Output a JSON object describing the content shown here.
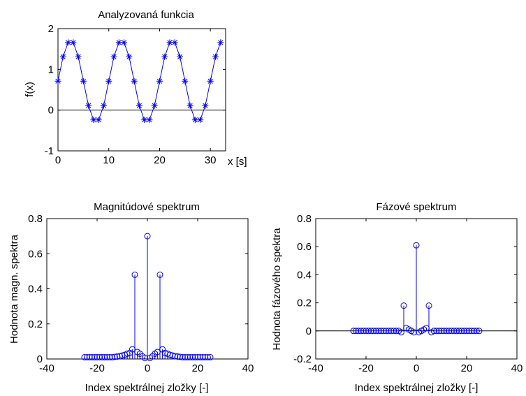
{
  "colors": {
    "series": "#0000ff",
    "axes": "#000000",
    "background": "#ffffff"
  },
  "chart_data": [
    {
      "type": "line",
      "marker": "asterisk",
      "title": "Analyzovaná funkcia",
      "xlabel": "x [s]",
      "ylabel": "f(x)",
      "xlim": [
        0,
        33
      ],
      "ylim": [
        -1,
        2
      ],
      "xticks": [
        0,
        10,
        20,
        30
      ],
      "yticks": [
        -1,
        0,
        1,
        2
      ],
      "zero_line": true,
      "x": [
        0,
        1,
        2,
        3,
        4,
        5,
        6,
        7,
        8,
        9,
        10,
        11,
        12,
        13,
        14,
        15,
        16,
        17,
        18,
        19,
        20,
        21,
        22,
        23,
        24,
        25,
        26,
        27,
        28,
        29,
        30,
        31,
        32
      ],
      "values": [
        0.71,
        1.31,
        1.66,
        1.66,
        1.31,
        0.71,
        0.11,
        -0.24,
        -0.24,
        0.11,
        0.71,
        1.31,
        1.66,
        1.66,
        1.31,
        0.71,
        0.11,
        -0.24,
        -0.24,
        0.11,
        0.71,
        1.31,
        1.66,
        1.66,
        1.31,
        0.71,
        0.11,
        -0.24,
        -0.24,
        0.11,
        0.71,
        1.31,
        1.66
      ]
    },
    {
      "type": "stem",
      "marker": "circle",
      "title": "Magnitúdové spektrum",
      "xlabel": "Index spektrálnej zložky [-]",
      "ylabel": "Hodnota magn. spektra",
      "xlim": [
        -40,
        40
      ],
      "ylim": [
        0,
        0.8
      ],
      "xticks": [
        -40,
        -20,
        0,
        20,
        40
      ],
      "xtick_labels": [
        "-40",
        "-20",
        "0",
        "20",
        "40"
      ],
      "yticks": [
        0,
        0.2,
        0.4,
        0.6,
        0.8
      ],
      "ytick_labels": [
        "0",
        "0.2",
        "0.4",
        "0.6",
        "0.8"
      ],
      "x": [
        -25,
        -24,
        -23,
        -22,
        -21,
        -20,
        -19,
        -18,
        -17,
        -16,
        -15,
        -14,
        -13,
        -12,
        -11,
        -10,
        -9,
        -8,
        -7,
        -6,
        -5,
        -4,
        -3,
        -2,
        -1,
        0,
        1,
        2,
        3,
        4,
        5,
        6,
        7,
        8,
        9,
        10,
        11,
        12,
        13,
        14,
        15,
        16,
        17,
        18,
        19,
        20,
        21,
        22,
        23,
        24,
        25
      ],
      "values": [
        0.01,
        0.01,
        0.01,
        0.01,
        0.01,
        0.01,
        0.01,
        0.01,
        0.01,
        0.01,
        0.01,
        0.01,
        0.012,
        0.014,
        0.016,
        0.02,
        0.024,
        0.03,
        0.035,
        0.055,
        0.48,
        0.04,
        0.03,
        0.015,
        0.005,
        0.7,
        0.005,
        0.015,
        0.03,
        0.04,
        0.48,
        0.055,
        0.035,
        0.03,
        0.024,
        0.02,
        0.016,
        0.014,
        0.012,
        0.01,
        0.01,
        0.01,
        0.01,
        0.01,
        0.01,
        0.01,
        0.01,
        0.01,
        0.01,
        0.01,
        0.01
      ]
    },
    {
      "type": "stem",
      "marker": "circle",
      "title": "Fázové spektrum",
      "xlabel": "Index spektrálnej zložky [-]",
      "ylabel": "Hodnota fázového spektra",
      "xlim": [
        -40,
        40
      ],
      "ylim": [
        -0.2,
        0.8
      ],
      "xticks": [
        -40,
        -20,
        0,
        20,
        40
      ],
      "xtick_labels": [
        "-40",
        "-20",
        "0",
        "20",
        "40"
      ],
      "yticks": [
        -0.2,
        0,
        0.2,
        0.4,
        0.6,
        0.8
      ],
      "ytick_labels": [
        "-0.2",
        "0",
        "0.2",
        "0.4",
        "0.6",
        "0.8"
      ],
      "zero_line": true,
      "x": [
        -25,
        -24,
        -23,
        -22,
        -21,
        -20,
        -19,
        -18,
        -17,
        -16,
        -15,
        -14,
        -13,
        -12,
        -11,
        -10,
        -9,
        -8,
        -7,
        -6,
        -5,
        -4,
        -3,
        -2,
        -1,
        0,
        1,
        2,
        3,
        4,
        5,
        6,
        7,
        8,
        9,
        10,
        11,
        12,
        13,
        14,
        15,
        16,
        17,
        18,
        19,
        20,
        21,
        22,
        23,
        24,
        25
      ],
      "values": [
        0,
        0,
        0,
        0,
        0,
        0,
        0,
        0,
        0,
        0,
        0,
        0,
        0,
        0,
        0,
        0,
        0,
        0,
        0,
        -0.01,
        0.18,
        0.02,
        0.01,
        0,
        -0.01,
        0.61,
        -0.01,
        0,
        0.01,
        0.02,
        0.18,
        -0.01,
        0,
        0,
        0,
        0,
        0,
        0,
        0,
        0,
        0,
        0,
        0,
        0,
        0,
        0,
        0,
        0,
        0,
        0,
        0
      ]
    }
  ]
}
